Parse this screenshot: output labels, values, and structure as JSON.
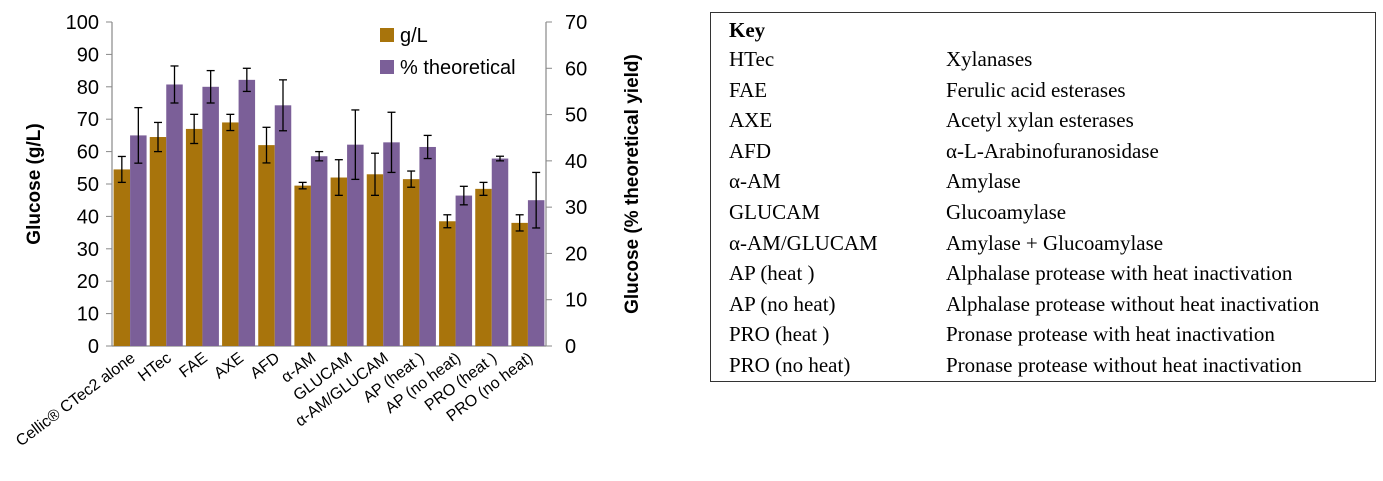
{
  "chart_data": {
    "type": "bar",
    "categories": [
      "Cellic® CTec2 alone",
      "HTec",
      "FAE",
      "AXE",
      "AFD",
      "α-AM",
      "GLUCAM",
      "α-AM/GLUCAM",
      "AP (heat )",
      "AP (no heat)",
      "PRO (heat )",
      "PRO (no heat)"
    ],
    "series": [
      {
        "name": "g/L",
        "axis": "left",
        "color": "#A8740C",
        "values": [
          54.5,
          64.5,
          67,
          69,
          62,
          49.5,
          52,
          53,
          51.5,
          38.5,
          48.5,
          38
        ],
        "errors": [
          4,
          4.5,
          4.5,
          2.5,
          5.5,
          1,
          5.5,
          6.5,
          2.5,
          2,
          2,
          2.5
        ]
      },
      {
        "name": "% theoretical",
        "axis": "right",
        "color": "#7B5F98",
        "values": [
          45.5,
          56.5,
          56,
          57.5,
          52,
          41,
          43.5,
          44,
          43,
          32.5,
          40.5,
          31.5
        ],
        "errors": [
          6,
          4,
          3.5,
          2.5,
          5.5,
          1,
          7.5,
          6.5,
          2.5,
          2,
          0.5,
          6
        ]
      }
    ],
    "ylabel": "Glucose (g/L)",
    "ylabel_right": "Glucose (% theoretical yield)",
    "ylim": [
      0,
      100
    ],
    "ylim_right": [
      0,
      70
    ],
    "yticks": [
      "0",
      "10",
      "20",
      "30",
      "40",
      "50",
      "60",
      "70",
      "80",
      "90",
      "100"
    ],
    "yticks_right": [
      "0",
      "10",
      "20",
      "30",
      "40",
      "50",
      "60",
      "70"
    ],
    "legend_position": "top-right",
    "grid": false
  },
  "key": {
    "title": "Key",
    "rows": [
      {
        "code": "HTec",
        "desc": "Xylanases"
      },
      {
        "code": "FAE",
        "desc": "Ferulic acid esterases"
      },
      {
        "code": "AXE",
        "desc": "Acetyl xylan esterases"
      },
      {
        "code": "AFD",
        "desc": "α-L-Arabinofuranosidase"
      },
      {
        "code": "α-AM",
        "desc": "Amylase"
      },
      {
        "code": "GLUCAM",
        "desc": "Glucoamylase"
      },
      {
        "code": "α-AM/GLUCAM",
        "desc": "Amylase + Glucoamylase"
      },
      {
        "code": "AP (heat )",
        "desc": "Alphalase protease with heat inactivation"
      },
      {
        "code": "AP (no heat)",
        "desc": "Alphalase protease without heat inactivation"
      },
      {
        "code": "PRO (heat )",
        "desc": "Pronase protease with heat inactivation"
      },
      {
        "code": "PRO (no heat)",
        "desc": "Pronase protease without heat inactivation"
      }
    ]
  }
}
